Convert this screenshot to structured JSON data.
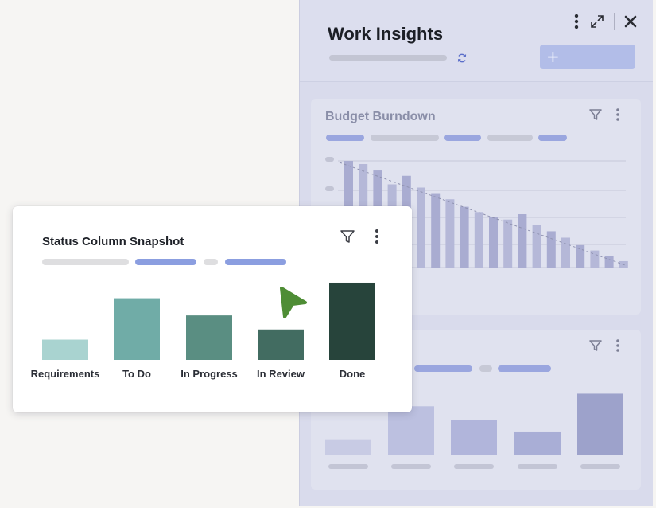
{
  "panel": {
    "title": "Work Insights",
    "add_button_icon": "plus-icon",
    "icons": [
      "more-vertical-icon",
      "expand-icon",
      "close-icon",
      "refresh-icon"
    ]
  },
  "budget_card": {
    "title": "Budget Burndown",
    "icons": [
      "filter-icon",
      "more-vertical-icon"
    ],
    "chart_data": {
      "type": "bar",
      "trend_line": "dashed",
      "values": [
        100,
        97,
        91,
        78,
        86,
        75,
        69,
        64,
        57,
        52,
        47,
        45,
        50,
        40,
        34,
        28,
        21,
        16,
        11,
        6
      ],
      "colors": [
        "#a9acd1",
        "#b5b8d8"
      ]
    }
  },
  "lower_card": {
    "icons": [
      "filter-icon",
      "more-vertical-icon"
    ],
    "chart_data": {
      "type": "bar",
      "values": [
        22,
        69,
        49,
        33,
        87
      ],
      "colors": [
        "#c8cbe4",
        "#bcc0e0",
        "#b1b5db",
        "#a9aed6",
        "#9da2cb"
      ]
    }
  },
  "status_card": {
    "title": "Status Column Snapshot",
    "icons": [
      "filter-icon",
      "more-vertical-icon"
    ],
    "chart_data": {
      "type": "bar",
      "categories": [
        "Requirements",
        "To Do",
        "In Progress",
        "In Review",
        "Done"
      ],
      "values": [
        26,
        79,
        57,
        39,
        99
      ],
      "colors": [
        "#a9d3d0",
        "#70aca7",
        "#5a8e82",
        "#426c61",
        "#27443b"
      ],
      "ylim": [
        0,
        100
      ]
    }
  },
  "cursor": {
    "icon": "pointer-cursor-icon",
    "color": "#4e8d35"
  }
}
